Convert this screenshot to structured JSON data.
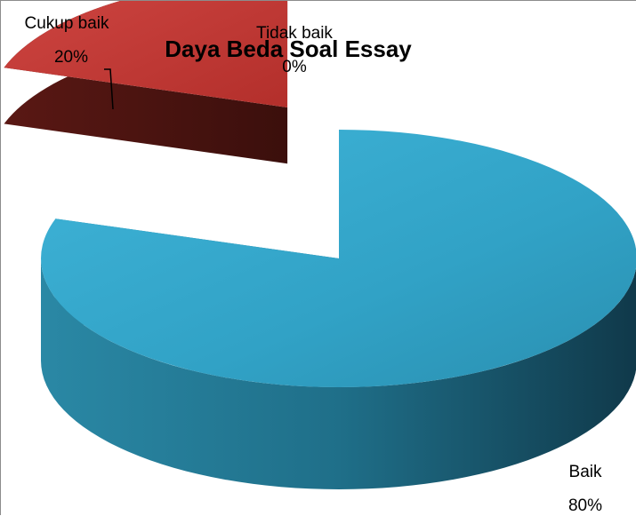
{
  "chart_data": {
    "type": "pie",
    "title": "Daya Beda Soal Essay",
    "categories": [
      "Baik",
      "Cukup baik",
      "Tidak baik"
    ],
    "values": [
      80,
      20,
      0
    ],
    "labels": [
      {
        "name": "Baik",
        "pct": "80%"
      },
      {
        "name": "Cukup baik",
        "pct": "20%"
      },
      {
        "name": "Tidak baik",
        "pct": "0%"
      }
    ],
    "style": "3d-exploded",
    "colors": {
      "baik_top": "#35a8cc",
      "baik_side": "#1e6f88",
      "cukup_top": "#c83a36",
      "cukup_side": "#4a1412"
    }
  }
}
